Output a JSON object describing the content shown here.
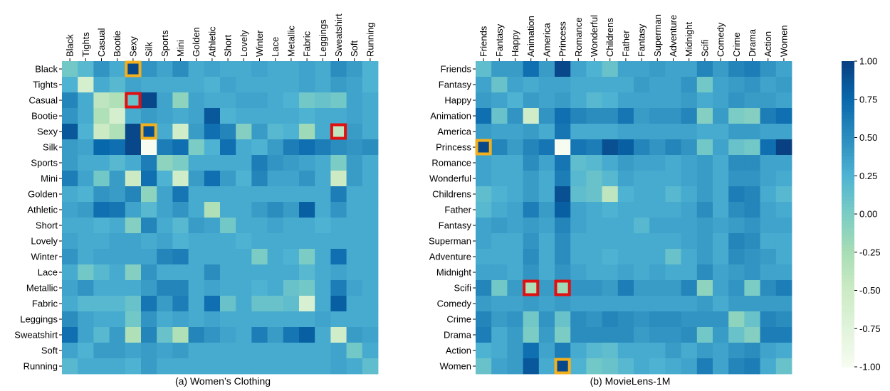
{
  "chart_data": [
    {
      "type": "heatmap",
      "caption": "(a) Women’s Clothing",
      "row_labels": [
        "Black",
        "Tights",
        "Casual",
        "Bootie",
        "Sexy",
        "Silk",
        "Sports",
        "Mini",
        "Golden",
        "Athletic",
        "Short",
        "Lovely",
        "Winter",
        "Lace",
        "Metallic",
        "Fabric",
        "Leggings",
        "Sweatshirt",
        "Soft",
        "Running"
      ],
      "col_labels": [
        "Black",
        "Tights",
        "Casual",
        "Bootie",
        "Sexy",
        "Silk",
        "Sports",
        "Mini",
        "Golden",
        "Athletic",
        "Short",
        "Lovely",
        "Winter",
        "Lace",
        "Metallic",
        "Fabric",
        "Leggings",
        "Sweatshirt",
        "Soft",
        "Running"
      ],
      "values": [
        [
          0.05,
          0.2,
          0.45,
          0.3,
          0.95,
          0.45,
          0.35,
          0.5,
          0.3,
          0.35,
          0.3,
          0.3,
          0.35,
          0.3,
          0.3,
          0.35,
          0.3,
          0.5,
          0.4,
          0.25
        ],
        [
          0.25,
          -0.6,
          0.3,
          0.2,
          0.35,
          0.3,
          0.3,
          0.3,
          0.3,
          0.25,
          0.35,
          0.3,
          0.3,
          0.3,
          0.3,
          0.35,
          0.3,
          0.4,
          0.35,
          0.25
        ],
        [
          0.55,
          0.3,
          -0.4,
          -0.3,
          0.1,
          0.95,
          0.35,
          -0.1,
          0.35,
          0.3,
          0.3,
          0.35,
          0.35,
          0.3,
          0.25,
          0.05,
          0.1,
          0.05,
          0.35,
          0.3
        ],
        [
          0.45,
          0.3,
          -0.3,
          -0.6,
          0.3,
          0.4,
          0.35,
          0.3,
          0.35,
          0.85,
          0.25,
          0.3,
          0.3,
          0.3,
          0.3,
          0.25,
          0.3,
          0.3,
          0.35,
          0.3
        ],
        [
          0.85,
          0.25,
          -0.5,
          -0.3,
          0.95,
          0.9,
          0.3,
          -0.55,
          0.4,
          0.7,
          0.55,
          -0.05,
          0.4,
          0.2,
          0.25,
          -0.2,
          0.3,
          -0.4,
          0.4,
          0.3
        ],
        [
          0.4,
          0.35,
          0.75,
          0.7,
          0.95,
          -1.0,
          0.6,
          0.7,
          0.0,
          0.25,
          0.7,
          0.3,
          0.25,
          0.4,
          0.6,
          0.7,
          0.6,
          0.5,
          0.45,
          0.5
        ],
        [
          0.4,
          0.3,
          0.3,
          0.2,
          0.3,
          0.6,
          -0.1,
          0.0,
          0.3,
          0.3,
          0.3,
          0.3,
          0.6,
          0.45,
          0.4,
          0.35,
          0.3,
          0.0,
          0.4,
          0.3
        ],
        [
          0.6,
          0.35,
          0.05,
          0.4,
          -0.5,
          0.7,
          0.25,
          -0.55,
          0.4,
          0.7,
          0.4,
          0.25,
          0.55,
          0.35,
          0.35,
          0.45,
          0.3,
          -0.5,
          0.4,
          0.3
        ],
        [
          0.3,
          0.25,
          0.45,
          0.4,
          0.55,
          -0.1,
          0.35,
          0.65,
          0.3,
          0.3,
          0.3,
          0.3,
          0.3,
          0.3,
          0.3,
          0.3,
          0.3,
          0.6,
          0.3,
          0.3
        ],
        [
          0.35,
          0.4,
          0.7,
          0.65,
          0.35,
          0.2,
          0.35,
          0.45,
          0.3,
          -0.3,
          0.3,
          0.3,
          0.4,
          0.5,
          0.4,
          0.8,
          0.3,
          0.45,
          0.3,
          0.3
        ],
        [
          0.3,
          0.3,
          0.25,
          0.3,
          -0.05,
          0.55,
          0.3,
          0.2,
          0.4,
          0.35,
          0.05,
          0.3,
          0.3,
          0.35,
          0.3,
          0.3,
          0.25,
          0.3,
          0.3,
          0.3
        ],
        [
          0.35,
          0.3,
          0.3,
          0.35,
          0.35,
          0.3,
          0.35,
          0.25,
          0.3,
          0.3,
          0.3,
          0.25,
          0.3,
          0.3,
          0.3,
          0.3,
          0.3,
          0.3,
          0.3,
          0.3
        ],
        [
          0.45,
          0.3,
          0.35,
          0.35,
          0.35,
          0.35,
          0.55,
          0.6,
          0.3,
          0.3,
          0.3,
          0.3,
          0.0,
          0.3,
          0.25,
          0.0,
          0.3,
          0.7,
          0.3,
          0.3
        ],
        [
          0.3,
          0.05,
          0.2,
          0.3,
          -0.05,
          0.45,
          0.3,
          0.3,
          0.3,
          0.5,
          0.3,
          0.3,
          0.3,
          0.3,
          0.3,
          0.2,
          0.3,
          0.35,
          0.3,
          0.3
        ],
        [
          0.35,
          0.45,
          0.3,
          0.3,
          0.3,
          0.4,
          0.55,
          0.55,
          0.3,
          0.35,
          0.3,
          0.3,
          0.25,
          0.3,
          0.1,
          0.05,
          0.3,
          0.6,
          0.35,
          0.3
        ],
        [
          0.3,
          0.2,
          0.2,
          0.2,
          0.1,
          0.65,
          0.4,
          0.6,
          0.3,
          0.7,
          0.1,
          0.3,
          0.1,
          0.1,
          0.15,
          -0.65,
          0.3,
          0.8,
          0.3,
          0.3
        ],
        [
          0.5,
          0.35,
          0.3,
          0.3,
          0.05,
          0.45,
          0.3,
          0.35,
          0.3,
          0.35,
          0.3,
          0.3,
          0.3,
          0.3,
          0.3,
          0.3,
          0.35,
          0.3,
          0.3,
          0.3
        ],
        [
          0.7,
          0.35,
          0.2,
          0.4,
          -0.3,
          0.55,
          0.1,
          -0.3,
          0.55,
          0.45,
          0.35,
          0.3,
          0.6,
          0.4,
          0.65,
          0.8,
          0.3,
          -0.55,
          0.4,
          0.35
        ],
        [
          0.35,
          0.25,
          0.4,
          0.4,
          0.35,
          0.4,
          0.35,
          0.4,
          0.3,
          0.3,
          0.3,
          0.3,
          0.3,
          0.3,
          0.3,
          0.3,
          0.3,
          0.35,
          0.05,
          0.3
        ],
        [
          0.2,
          0.3,
          0.3,
          0.3,
          0.25,
          0.4,
          0.3,
          0.3,
          0.3,
          0.3,
          0.3,
          0.3,
          0.3,
          0.3,
          0.3,
          0.3,
          0.3,
          0.35,
          0.3,
          0.15
        ]
      ],
      "highlights_yellow": [
        [
          0,
          4
        ],
        [
          4,
          5
        ]
      ],
      "highlights_red": [
        [
          2,
          4
        ],
        [
          4,
          17
        ]
      ]
    },
    {
      "type": "heatmap",
      "caption": "(b) MovieLens-1M",
      "row_labels": [
        "Friends",
        "Fantasy",
        "Happy",
        "Animation",
        "America",
        "Princess",
        "Romance",
        "Wonderful",
        "Childrens",
        "Father",
        "Fantasy",
        "Superman",
        "Adventure",
        "Midnight",
        "Scifi",
        "Comedy",
        "Crime",
        "Drama",
        "Action",
        "Women"
      ],
      "col_labels": [
        "Friends",
        "Fantasy",
        "Happy",
        "Animation",
        "America",
        "Princess",
        "Romance",
        "Wonderful",
        "Childrens",
        "Father",
        "Fantasy",
        "Superman",
        "Adventure",
        "Midnight",
        "Scifi",
        "Comedy",
        "Crime",
        "Drama",
        "Action",
        "Women"
      ],
      "values": [
        [
          0.15,
          0.4,
          0.4,
          0.7,
          0.4,
          0.95,
          0.35,
          0.25,
          0.1,
          0.35,
          0.35,
          0.4,
          0.35,
          0.35,
          0.55,
          0.4,
          0.55,
          0.6,
          0.45,
          0.35
        ],
        [
          0.35,
          0.1,
          0.35,
          0.3,
          0.35,
          0.35,
          0.3,
          0.3,
          0.3,
          0.3,
          0.4,
          0.35,
          0.35,
          0.45,
          0.05,
          0.35,
          0.4,
          0.45,
          0.35,
          0.4
        ],
        [
          0.4,
          0.35,
          0.25,
          0.4,
          0.35,
          0.4,
          0.3,
          0.2,
          0.25,
          0.35,
          0.35,
          0.35,
          0.35,
          0.4,
          0.3,
          0.35,
          0.45,
          0.4,
          0.4,
          0.35
        ],
        [
          0.7,
          0.1,
          0.45,
          -0.55,
          0.45,
          0.7,
          0.55,
          0.5,
          0.5,
          0.65,
          0.4,
          0.45,
          0.45,
          0.55,
          -0.05,
          0.4,
          0.0,
          -0.05,
          0.6,
          0.7
        ],
        [
          0.4,
          0.35,
          0.35,
          0.4,
          0.3,
          0.65,
          0.3,
          0.3,
          0.3,
          0.35,
          0.35,
          0.35,
          0.35,
          0.35,
          0.3,
          0.3,
          0.4,
          0.4,
          0.35,
          0.35
        ],
        [
          0.95,
          0.55,
          0.4,
          0.55,
          0.65,
          -1.0,
          0.65,
          0.6,
          0.9,
          0.8,
          0.55,
          0.45,
          0.55,
          0.45,
          0.05,
          0.35,
          0.1,
          0.05,
          0.7,
          1.0
        ],
        [
          0.35,
          0.3,
          0.3,
          0.5,
          0.35,
          0.65,
          0.15,
          0.2,
          0.3,
          0.4,
          0.35,
          0.35,
          0.3,
          0.35,
          0.4,
          0.3,
          0.5,
          0.5,
          0.35,
          0.35
        ],
        [
          0.35,
          0.3,
          0.3,
          0.4,
          0.3,
          0.6,
          0.2,
          0.1,
          0.2,
          0.35,
          0.3,
          0.3,
          0.3,
          0.35,
          0.4,
          0.3,
          0.45,
          0.45,
          0.35,
          0.3
        ],
        [
          0.15,
          0.25,
          0.3,
          0.4,
          0.3,
          0.9,
          0.15,
          0.1,
          -0.4,
          0.25,
          0.3,
          0.3,
          0.2,
          0.3,
          0.4,
          0.3,
          0.6,
          0.55,
          0.3,
          0.2
        ],
        [
          0.2,
          0.3,
          0.35,
          0.6,
          0.4,
          0.8,
          0.35,
          0.3,
          0.25,
          0.3,
          0.3,
          0.3,
          0.3,
          0.35,
          0.5,
          0.3,
          0.5,
          0.55,
          0.35,
          0.3
        ],
        [
          0.35,
          0.4,
          0.35,
          0.4,
          0.35,
          0.55,
          0.35,
          0.3,
          0.3,
          0.3,
          0.2,
          0.35,
          0.35,
          0.35,
          0.4,
          0.35,
          0.4,
          0.45,
          0.35,
          0.35
        ],
        [
          0.35,
          0.3,
          0.3,
          0.45,
          0.3,
          0.5,
          0.3,
          0.3,
          0.3,
          0.3,
          0.3,
          0.3,
          0.3,
          0.35,
          0.4,
          0.3,
          0.55,
          0.5,
          0.3,
          0.3
        ],
        [
          0.3,
          0.3,
          0.3,
          0.5,
          0.3,
          0.5,
          0.3,
          0.3,
          0.25,
          0.3,
          0.3,
          0.3,
          0.1,
          0.3,
          0.4,
          0.3,
          0.5,
          0.45,
          0.4,
          0.3
        ],
        [
          0.35,
          0.35,
          0.3,
          0.45,
          0.3,
          0.45,
          0.35,
          0.3,
          0.3,
          0.35,
          0.3,
          0.35,
          0.3,
          0.3,
          0.5,
          0.35,
          0.4,
          0.45,
          0.35,
          0.35
        ],
        [
          0.55,
          0.05,
          0.4,
          -0.3,
          0.4,
          -0.2,
          0.45,
          0.45,
          0.4,
          0.6,
          0.4,
          0.4,
          0.4,
          0.55,
          -0.1,
          0.35,
          0.45,
          0.0,
          0.5,
          0.6
        ],
        [
          0.4,
          0.35,
          0.35,
          0.4,
          0.35,
          0.4,
          0.35,
          0.35,
          0.35,
          0.35,
          0.35,
          0.35,
          0.35,
          0.35,
          0.4,
          0.3,
          0.4,
          0.4,
          0.4,
          0.4
        ],
        [
          0.55,
          0.4,
          0.45,
          0.05,
          0.45,
          0.1,
          0.5,
          0.45,
          0.55,
          0.5,
          0.45,
          0.5,
          0.5,
          0.45,
          0.45,
          0.45,
          -0.1,
          0.1,
          0.55,
          0.5
        ],
        [
          0.6,
          0.3,
          0.4,
          0.0,
          0.4,
          0.0,
          0.5,
          0.5,
          0.5,
          0.5,
          0.4,
          0.45,
          0.45,
          0.5,
          0.05,
          0.4,
          0.1,
          -0.05,
          0.6,
          0.6
        ],
        [
          0.25,
          0.3,
          0.4,
          0.7,
          0.35,
          0.6,
          0.3,
          0.2,
          0.15,
          0.3,
          0.3,
          0.3,
          0.4,
          0.3,
          0.4,
          0.35,
          0.45,
          0.5,
          0.35,
          0.3
        ],
        [
          0.1,
          0.35,
          0.4,
          0.85,
          0.3,
          0.95,
          0.25,
          0.05,
          0.1,
          0.2,
          0.3,
          0.25,
          0.3,
          0.35,
          0.6,
          0.35,
          0.55,
          0.6,
          0.3,
          0.1
        ]
      ],
      "highlights_yellow": [
        [
          5,
          0
        ],
        [
          19,
          5
        ]
      ],
      "highlights_red": [
        [
          14,
          3
        ],
        [
          14,
          5
        ]
      ]
    }
  ],
  "colorbar": {
    "ticks": [
      "1.00",
      "0.75",
      "0.50",
      "0.25",
      "0.00",
      "-0.25",
      "-0.50",
      "-0.75",
      "-1.00"
    ],
    "min": -1.0,
    "max": 1.0
  },
  "colors": {
    "scale": [
      "#f7fcf0",
      "#e0f3db",
      "#ccebc5",
      "#a8ddb5",
      "#7bccc4",
      "#4eb3d3",
      "#2b8cbe",
      "#0868ac",
      "#084081"
    ],
    "highlight_yellow": "#f2b01e",
    "highlight_red": "#e01010"
  }
}
